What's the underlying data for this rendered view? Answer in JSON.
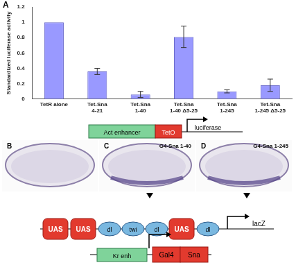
{
  "chart_data": {
    "type": "bar",
    "label": "A",
    "ylabel": "Standardized luciferase activity",
    "categories": [
      "TetR alone",
      "Tet-Sna 4-21",
      "Tet-Sna 1-40",
      "Tet-Sna 1-40 Δ5-25",
      "Tet-Sna 1-245",
      "Tet-Sna 1-245 Δ5-25"
    ],
    "values": [
      1.0,
      0.36,
      0.06,
      0.81,
      0.1,
      0.18
    ],
    "errors": [
      null,
      0.04,
      0.04,
      0.14,
      0.02,
      0.08
    ],
    "color": "#9999ff",
    "ylim": [
      0,
      1.2
    ],
    "yticks": [
      0,
      0.2,
      0.4,
      0.6,
      0.8,
      1,
      1.2
    ],
    "grid": false
  },
  "construct_A": {
    "enhancer": "Act enhancer",
    "operator": "TetO",
    "gene": "luciferase"
  },
  "embryos": [
    {
      "label": "B",
      "title": null,
      "arrowhead": false
    },
    {
      "label": "C",
      "title": "G4-Sna 1-40",
      "arrowhead": true
    },
    {
      "label": "D",
      "title": "G4-Sna 1-245",
      "arrowhead": true
    }
  ],
  "reporter": {
    "sites": [
      "UAS",
      "UAS",
      "dl",
      "twi",
      "dl",
      "UAS",
      "dl"
    ],
    "gene": "lacZ"
  },
  "driver": {
    "enhancer": "Kr enh",
    "parts": [
      "Gal4",
      "Sna"
    ]
  }
}
